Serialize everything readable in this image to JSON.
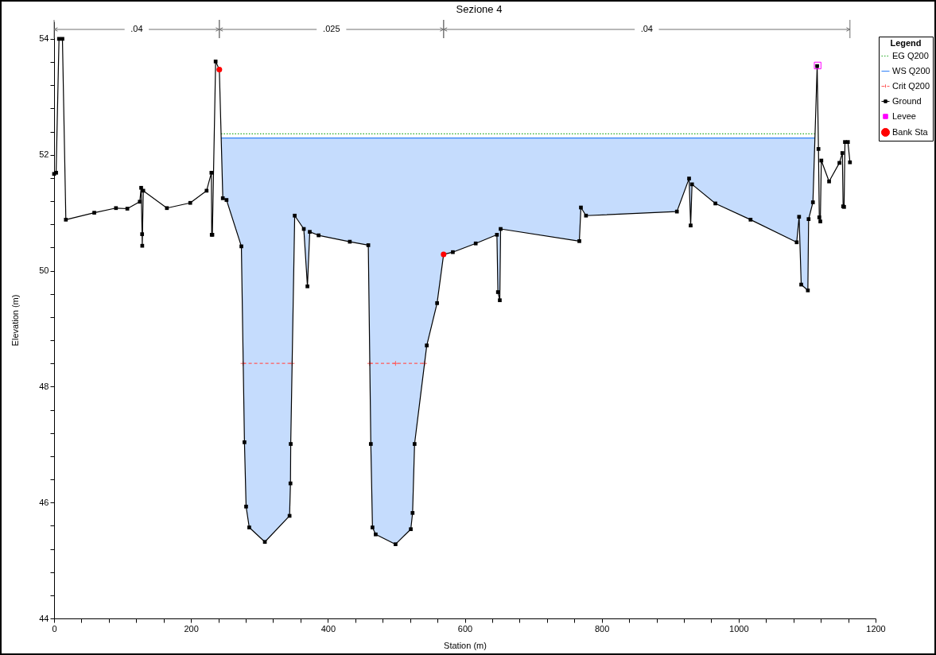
{
  "chart_data": {
    "type": "line",
    "title": "Sezione 4",
    "xlabel": "Station (m)",
    "ylabel": "Elevation (m)",
    "legend_title": "Legend",
    "legend": "right",
    "grid": false,
    "xlim": [
      0,
      1200
    ],
    "ylim": [
      44,
      54.3
    ],
    "xticks": [
      0,
      {
        "value": 40,
        "label": null
      },
      {
        "value": 80,
        "label": null
      },
      {
        "value": 120,
        "label": null
      },
      {
        "value": 160,
        "label": null
      },
      200,
      {
        "value": 240,
        "label": null
      },
      {
        "value": 280,
        "label": null
      },
      {
        "value": 320,
        "label": null
      },
      {
        "value": 360,
        "label": null
      },
      400,
      {
        "value": 440,
        "label": null
      },
      {
        "value": 480,
        "label": null
      },
      {
        "value": 520,
        "label": null
      },
      {
        "value": 560,
        "label": null
      },
      600,
      {
        "value": 640,
        "label": null
      },
      {
        "value": 680,
        "label": null
      },
      {
        "value": 720,
        "label": null
      },
      {
        "value": 760,
        "label": null
      },
      800,
      {
        "value": 840,
        "label": null
      },
      {
        "value": 880,
        "label": null
      },
      {
        "value": 920,
        "label": null
      },
      {
        "value": 960,
        "label": null
      },
      1000,
      {
        "value": 1040,
        "label": null
      },
      {
        "value": 1080,
        "label": null
      },
      {
        "value": 1120,
        "label": null
      },
      {
        "value": 1160,
        "label": null
      },
      1200
    ],
    "yticks": [
      44,
      {
        "value": 44.4,
        "label": null
      },
      {
        "value": 44.8,
        "label": null
      },
      {
        "value": 45.2,
        "label": null
      },
      {
        "value": 45.6,
        "label": null
      },
      46,
      {
        "value": 46.4,
        "label": null
      },
      {
        "value": 46.8,
        "label": null
      },
      {
        "value": 47.2,
        "label": null
      },
      {
        "value": 47.6,
        "label": null
      },
      48,
      {
        "value": 48.4,
        "label": null
      },
      {
        "value": 48.8,
        "label": null
      },
      {
        "value": 49.2,
        "label": null
      },
      {
        "value": 49.6,
        "label": null
      },
      50,
      {
        "value": 50.4,
        "label": null
      },
      {
        "value": 50.8,
        "label": null
      },
      {
        "value": 51.2,
        "label": null
      },
      {
        "value": 51.6,
        "label": null
      },
      52,
      {
        "value": 52.4,
        "label": null
      },
      {
        "value": 52.8,
        "label": null
      },
      {
        "value": 53.2,
        "label": null
      },
      {
        "value": 53.6,
        "label": null
      },
      54
    ],
    "annotations": [
      ".04",
      ".025",
      ".04"
    ],
    "series": [
      {
        "name": "EG Q200",
        "color": "#22aa22",
        "line_style": "dotted",
        "marker": "none",
        "x": [
          243.9,
          1111.6
        ],
        "values": [
          52.36,
          52.36
        ]
      },
      {
        "name": "WS Q200",
        "color": "#2f80f8",
        "line_style": "solid",
        "marker": "none",
        "x": [
          244.1,
          246.5,
          251.9,
          273.6,
          278.1,
          280.5,
          285.1,
          307.9,
          344,
          345.3,
          345.7,
          351.5,
          364.8,
          370.1,
          373.5,
          386.4,
          432,
          459,
          462.7,
          465.1,
          469.8,
          498.8,
          521.1,
          523.7,
          526.6,
          544.4,
          559.5,
          569,
          582.5,
          615.9,
          646.9,
          648.4,
          651.1,
          652.3,
          767.3,
          769.6,
          777,
          909.8,
          927.6,
          929.9,
          931.9,
          966,
          1017.4,
          1084.8,
          1088.3,
          1091.4,
          1101.1,
          1102.2,
          1108.5,
          1111.4
        ],
        "values": [
          52.29,
          52.29,
          52.29,
          52.29,
          52.29,
          52.29,
          52.29,
          52.29,
          52.29,
          52.29,
          52.29,
          52.29,
          52.29,
          52.29,
          52.29,
          52.29,
          52.29,
          52.29,
          52.29,
          52.29,
          52.29,
          52.29,
          52.29,
          52.29,
          52.29,
          52.29,
          52.29,
          52.29,
          52.29,
          52.29,
          52.29,
          52.29,
          52.29,
          52.29,
          52.29,
          52.29,
          52.29,
          52.29,
          52.29,
          52.29,
          52.29,
          52.29,
          52.29,
          52.29,
          52.29,
          52.29,
          52.29,
          52.29,
          52.29,
          52.29
        ],
        "upper": [
          52.29,
          52.29,
          52.29,
          52.29,
          52.29,
          52.29,
          52.29,
          52.29,
          52.29,
          52.29,
          52.29,
          52.29,
          52.29,
          52.29,
          52.29,
          52.29,
          52.29,
          52.29,
          52.29,
          52.29,
          52.29,
          52.29,
          52.29,
          52.29,
          52.29,
          52.29,
          52.29,
          52.29,
          52.29,
          52.29,
          52.29,
          52.29,
          52.29,
          52.29,
          52.29,
          52.29,
          52.29,
          52.29,
          52.29,
          52.29,
          52.29,
          52.29,
          52.29,
          52.29,
          52.29,
          52.29,
          52.29,
          52.29,
          52.29,
          52.29
        ],
        "lower": [
          52.29,
          51.25,
          51.22,
          50.42,
          47.04,
          45.93,
          45.57,
          45.32,
          45.77,
          46.33,
          47.01,
          50.95,
          50.72,
          49.73,
          50.67,
          50.61,
          50.5,
          50.44,
          47.01,
          45.57,
          45.45,
          45.28,
          45.54,
          45.82,
          47.01,
          48.71,
          49.44,
          50.28,
          50.32,
          50.47,
          50.62,
          49.63,
          49.49,
          50.72,
          50.51,
          51.09,
          50.95,
          51.02,
          51.59,
          50.78,
          51.49,
          51.16,
          50.88,
          50.49,
          50.93,
          49.76,
          49.66,
          50.89,
          51.18,
          52.29
        ]
      },
      {
        "name": "Crit Q200",
        "color": "#ff5a5a",
        "line_style": "dashed",
        "marker": "cross",
        "x": [
          276,
          347.7,
          400,
          461.2,
          498.8,
          541.2
        ],
        "values": [
          48.4,
          48.4,
          null,
          48.4,
          48.4,
          48.4
        ]
      },
      {
        "name": "Ground",
        "color": "#000000",
        "line_style": "solid",
        "marker": "square",
        "x": [
          0,
          3,
          7.2,
          12.2,
          17.2,
          58.7,
          90.4,
          107,
          125.2,
          127.2,
          128.6,
          128.8,
          130.3,
          164.8,
          198.9,
          222.8,
          229.8,
          230.3,
          231.2,
          236,
          241.4,
          246.5,
          251.9,
          273.6,
          278.1,
          280.5,
          285.1,
          307.9,
          344,
          345.3,
          345.7,
          351.5,
          364.8,
          370.1,
          373.5,
          386.4,
          432,
          459,
          462.7,
          465.1,
          469.8,
          498.8,
          521.1,
          523.7,
          526.6,
          544.4,
          559.5,
          569,
          582.5,
          615.9,
          646.9,
          648.4,
          651.1,
          652.3,
          767.3,
          769.6,
          777,
          909.8,
          927.6,
          929.9,
          931.9,
          966,
          1017.4,
          1084.8,
          1088.3,
          1091.4,
          1101.1,
          1102.2,
          1108.5,
          1114.7,
          1116.6,
          1117.8,
          1119.3,
          1120.8,
          1132.1,
          1147.2,
          1151.5,
          1152.6,
          1154,
          1155.3,
          1159.6,
          1162.6
        ],
        "values": [
          51.67,
          51.69,
          54,
          54,
          50.88,
          51,
          51.08,
          51.07,
          51.19,
          51.43,
          50.63,
          50.43,
          51.38,
          51.08,
          51.17,
          51.38,
          51.69,
          50.62,
          50.62,
          53.61,
          53.47,
          51.25,
          51.22,
          50.42,
          47.04,
          45.93,
          45.57,
          45.32,
          45.77,
          46.33,
          47.01,
          50.95,
          50.72,
          49.73,
          50.67,
          50.61,
          50.5,
          50.44,
          47.01,
          45.57,
          45.45,
          45.28,
          45.54,
          45.82,
          47.01,
          48.71,
          49.44,
          50.28,
          50.32,
          50.47,
          50.62,
          49.63,
          49.49,
          50.72,
          50.51,
          51.09,
          50.95,
          51.02,
          51.59,
          50.78,
          51.49,
          51.16,
          50.88,
          50.49,
          50.93,
          49.76,
          49.66,
          50.89,
          51.18,
          53.53,
          52.1,
          50.92,
          50.85,
          51.9,
          51.54,
          51.86,
          52.03,
          51.11,
          51.1,
          52.22,
          52.22,
          51.87
        ]
      },
      {
        "name": "Levee",
        "type": "scatter",
        "color": "#ff00ff",
        "marker": "square",
        "x": [
          1115.4
        ],
        "values": [
          53.54
        ]
      },
      {
        "name": "Bank Sta",
        "type": "scatter",
        "color": "#ff0000",
        "marker": "circle",
        "x": [
          241.4,
          569
        ],
        "values": [
          53.47,
          50.28
        ]
      }
    ]
  }
}
